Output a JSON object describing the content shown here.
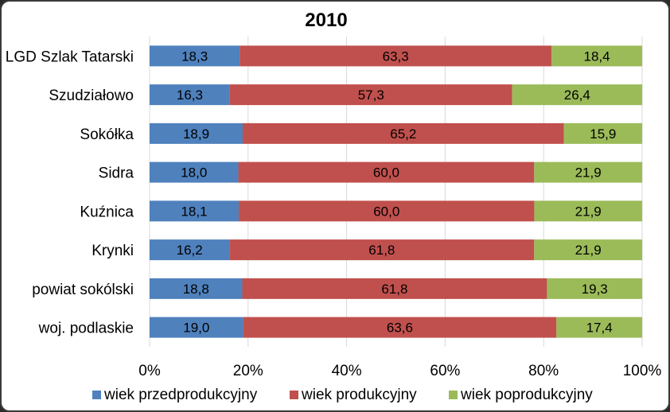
{
  "chart_data": {
    "type": "bar",
    "orientation": "horizontal",
    "stacked": "percent",
    "title": "2010",
    "categories": [
      "LGD Szlak Tatarski",
      "Szudziałowo",
      "Sokółka",
      "Sidra",
      "Kuźnica",
      "Krynki",
      "powiat sokólski",
      "woj. podlaskie"
    ],
    "series": [
      {
        "name": "wiek przedprodukcyjny",
        "color": "#4f81bd",
        "values": [
          18.3,
          16.3,
          18.9,
          18.0,
          18.1,
          16.2,
          18.8,
          19.0
        ],
        "labels": [
          "18,3",
          "16,3",
          "18,9",
          "18,0",
          "18,1",
          "16,2",
          "18,8",
          "19,0"
        ]
      },
      {
        "name": "wiek produkcyjny",
        "color": "#c0504d",
        "values": [
          63.3,
          57.3,
          65.2,
          60.0,
          60.0,
          61.8,
          61.8,
          63.6
        ],
        "labels": [
          "63,3",
          "57,3",
          "65,2",
          "60,0",
          "60,0",
          "61,8",
          "61,8",
          "63,6"
        ]
      },
      {
        "name": "wiek poprodukcyjny",
        "color": "#9bbb59",
        "values": [
          18.4,
          26.4,
          15.9,
          21.9,
          21.9,
          21.9,
          19.3,
          17.4
        ],
        "labels": [
          "18,4",
          "26,4",
          "15,9",
          "21,9",
          "21,9",
          "21,9",
          "19,3",
          "17,4"
        ]
      }
    ],
    "xaxis": {
      "ticks": [
        0,
        20,
        40,
        60,
        80,
        100
      ],
      "tick_labels": [
        "0%",
        "20%",
        "40%",
        "60%",
        "80%",
        "100%"
      ],
      "xlim": [
        0,
        100
      ]
    },
    "grid": true,
    "legend": "bottom"
  }
}
